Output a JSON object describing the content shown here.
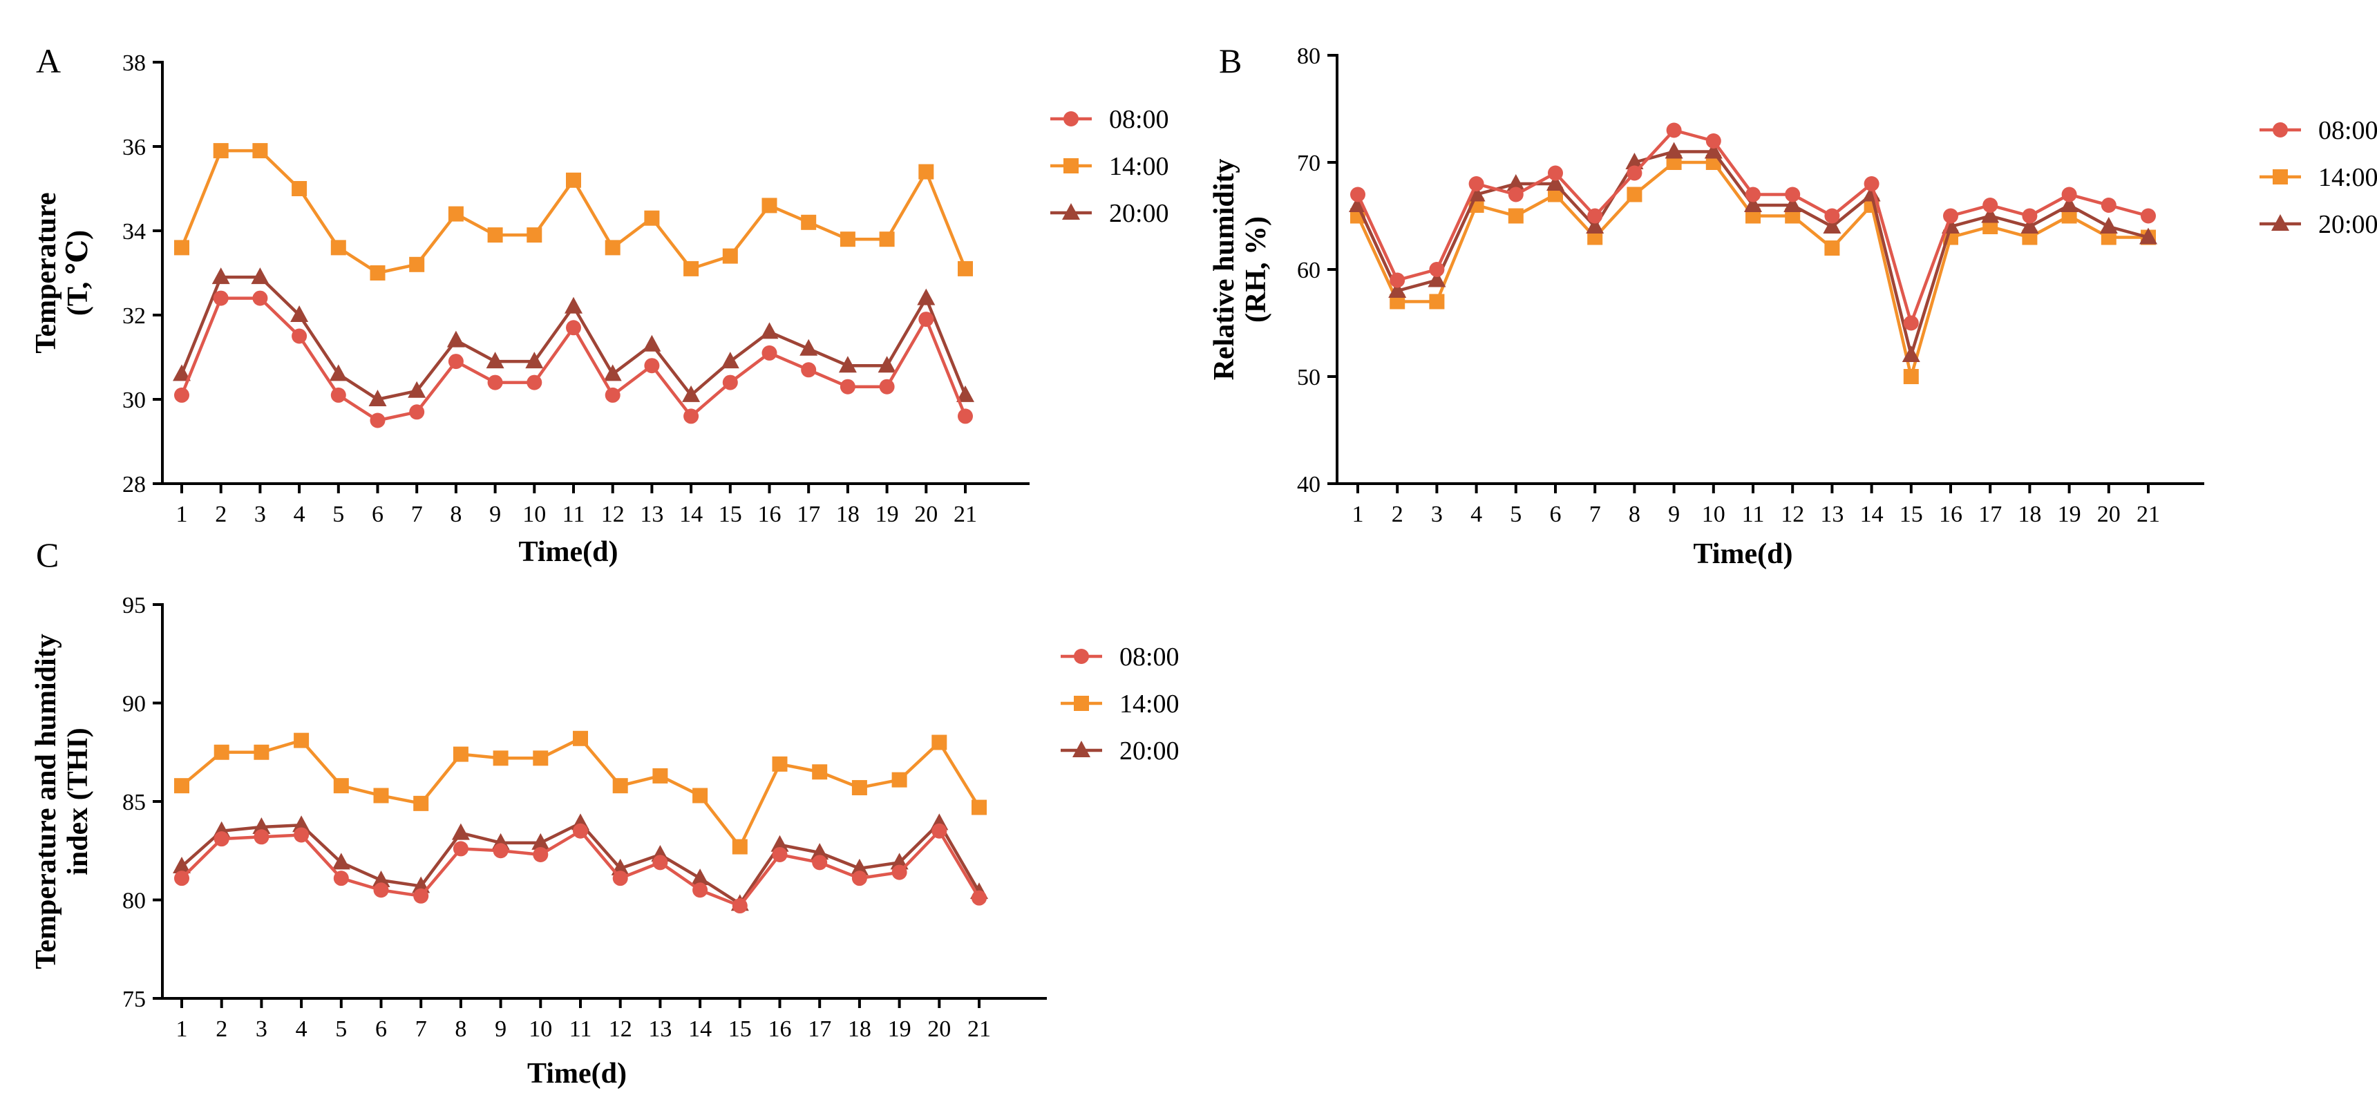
{
  "colors": {
    "s0800": "#E0584D",
    "s1400": "#F4912A",
    "s2000": "#9F4436",
    "axis": "#000000"
  },
  "chart_data": [
    {
      "panel": "A",
      "type": "line",
      "title": "",
      "xlabel": "Time(d)",
      "ylabel": [
        "Temperature",
        "(T, ℃)"
      ],
      "ylim": [
        28,
        38
      ],
      "yticks": [
        28,
        30,
        32,
        34,
        36,
        38
      ],
      "yticklabels": [
        "28",
        "30",
        "32",
        "34",
        "36",
        "38"
      ],
      "categories": [
        "1",
        "2",
        "3",
        "4",
        "5",
        "6",
        "7",
        "8",
        "9",
        "10",
        "11",
        "12",
        "13",
        "14",
        "15",
        "16",
        "17",
        "18",
        "19",
        "20",
        "21"
      ],
      "legend_position": "top-right",
      "series": [
        {
          "name": "08:00",
          "color": "#E0584D",
          "marker": "circle",
          "values": [
            30.1,
            32.4,
            32.4,
            31.5,
            30.1,
            29.5,
            29.7,
            30.9,
            30.4,
            30.4,
            31.7,
            30.1,
            30.8,
            29.6,
            30.4,
            31.1,
            30.7,
            30.3,
            30.3,
            31.9,
            29.6
          ]
        },
        {
          "name": "14:00",
          "color": "#F4912A",
          "marker": "square",
          "values": [
            33.6,
            35.9,
            35.9,
            35.0,
            33.6,
            33.0,
            33.2,
            34.4,
            33.9,
            33.9,
            35.2,
            33.6,
            34.3,
            33.1,
            33.4,
            34.6,
            34.2,
            33.8,
            33.8,
            35.4,
            33.1
          ]
        },
        {
          "name": "20:00",
          "color": "#9F4436",
          "marker": "triangle",
          "values": [
            30.6,
            32.9,
            32.9,
            32.0,
            30.6,
            30.0,
            30.2,
            31.4,
            30.9,
            30.9,
            32.2,
            30.6,
            31.3,
            30.1,
            30.9,
            31.6,
            31.2,
            30.8,
            30.8,
            32.4,
            30.1
          ]
        }
      ]
    },
    {
      "panel": "B",
      "type": "line",
      "title": "",
      "xlabel": "Time(d)",
      "ylabel": [
        "Relative humidity",
        "(RH, %)"
      ],
      "ylim": [
        40,
        80
      ],
      "yticks": [
        40,
        50,
        60,
        70,
        80
      ],
      "yticklabels": [
        "40",
        "50",
        "60",
        "70",
        "80"
      ],
      "categories": [
        "1",
        "2",
        "3",
        "4",
        "5",
        "6",
        "7",
        "8",
        "9",
        "10",
        "11",
        "12",
        "13",
        "14",
        "15",
        "16",
        "17",
        "18",
        "19",
        "20",
        "21"
      ],
      "legend_position": "top-right",
      "series": [
        {
          "name": "08:00",
          "color": "#E0584D",
          "marker": "circle",
          "values": [
            67,
            59,
            60,
            68,
            67,
            69,
            65,
            69,
            73,
            72,
            67,
            67,
            65,
            68,
            55,
            65,
            66,
            65,
            67,
            66,
            65
          ]
        },
        {
          "name": "14:00",
          "color": "#F4912A",
          "marker": "square",
          "values": [
            65,
            57,
            57,
            66,
            65,
            67,
            63,
            67,
            70,
            70,
            65,
            65,
            62,
            66,
            50,
            63,
            64,
            63,
            65,
            63,
            63
          ]
        },
        {
          "name": "20:00",
          "color": "#9F4436",
          "marker": "triangle",
          "values": [
            66,
            58,
            59,
            67,
            68,
            68,
            64,
            70,
            71,
            71,
            66,
            66,
            64,
            67,
            52,
            64,
            65,
            64,
            66,
            64,
            63
          ]
        }
      ]
    },
    {
      "panel": "C",
      "type": "line",
      "title": "",
      "xlabel": "Time(d)",
      "ylabel": [
        "Temperature and humidity",
        "index (THI)"
      ],
      "ylim": [
        75,
        95
      ],
      "yticks": [
        75,
        80,
        85,
        90,
        95
      ],
      "yticklabels": [
        "75",
        "80",
        "85",
        "90",
        "95"
      ],
      "categories": [
        "1",
        "2",
        "3",
        "4",
        "5",
        "6",
        "7",
        "8",
        "9",
        "10",
        "11",
        "12",
        "13",
        "14",
        "15",
        "16",
        "17",
        "18",
        "19",
        "20",
        "21"
      ],
      "legend_position": "top-right",
      "series": [
        {
          "name": "08:00",
          "color": "#E0584D",
          "marker": "circle",
          "values": [
            81.1,
            83.1,
            83.2,
            83.3,
            81.1,
            80.5,
            80.2,
            82.6,
            82.5,
            82.3,
            83.5,
            81.1,
            81.9,
            80.5,
            79.7,
            82.3,
            81.9,
            81.1,
            81.4,
            83.5,
            80.1
          ]
        },
        {
          "name": "14:00",
          "color": "#F4912A",
          "marker": "square",
          "values": [
            85.8,
            87.5,
            87.5,
            88.1,
            85.8,
            85.3,
            84.9,
            87.4,
            87.2,
            87.2,
            88.2,
            85.8,
            86.3,
            85.3,
            82.7,
            86.9,
            86.5,
            85.7,
            86.1,
            88.0,
            84.7
          ]
        },
        {
          "name": "20:00",
          "color": "#9F4436",
          "marker": "triangle",
          "values": [
            81.7,
            83.5,
            83.7,
            83.8,
            81.9,
            81.0,
            80.7,
            83.4,
            82.9,
            82.9,
            83.9,
            81.6,
            82.3,
            81.1,
            79.8,
            82.8,
            82.4,
            81.6,
            81.9,
            83.9,
            80.4
          ]
        }
      ]
    }
  ]
}
